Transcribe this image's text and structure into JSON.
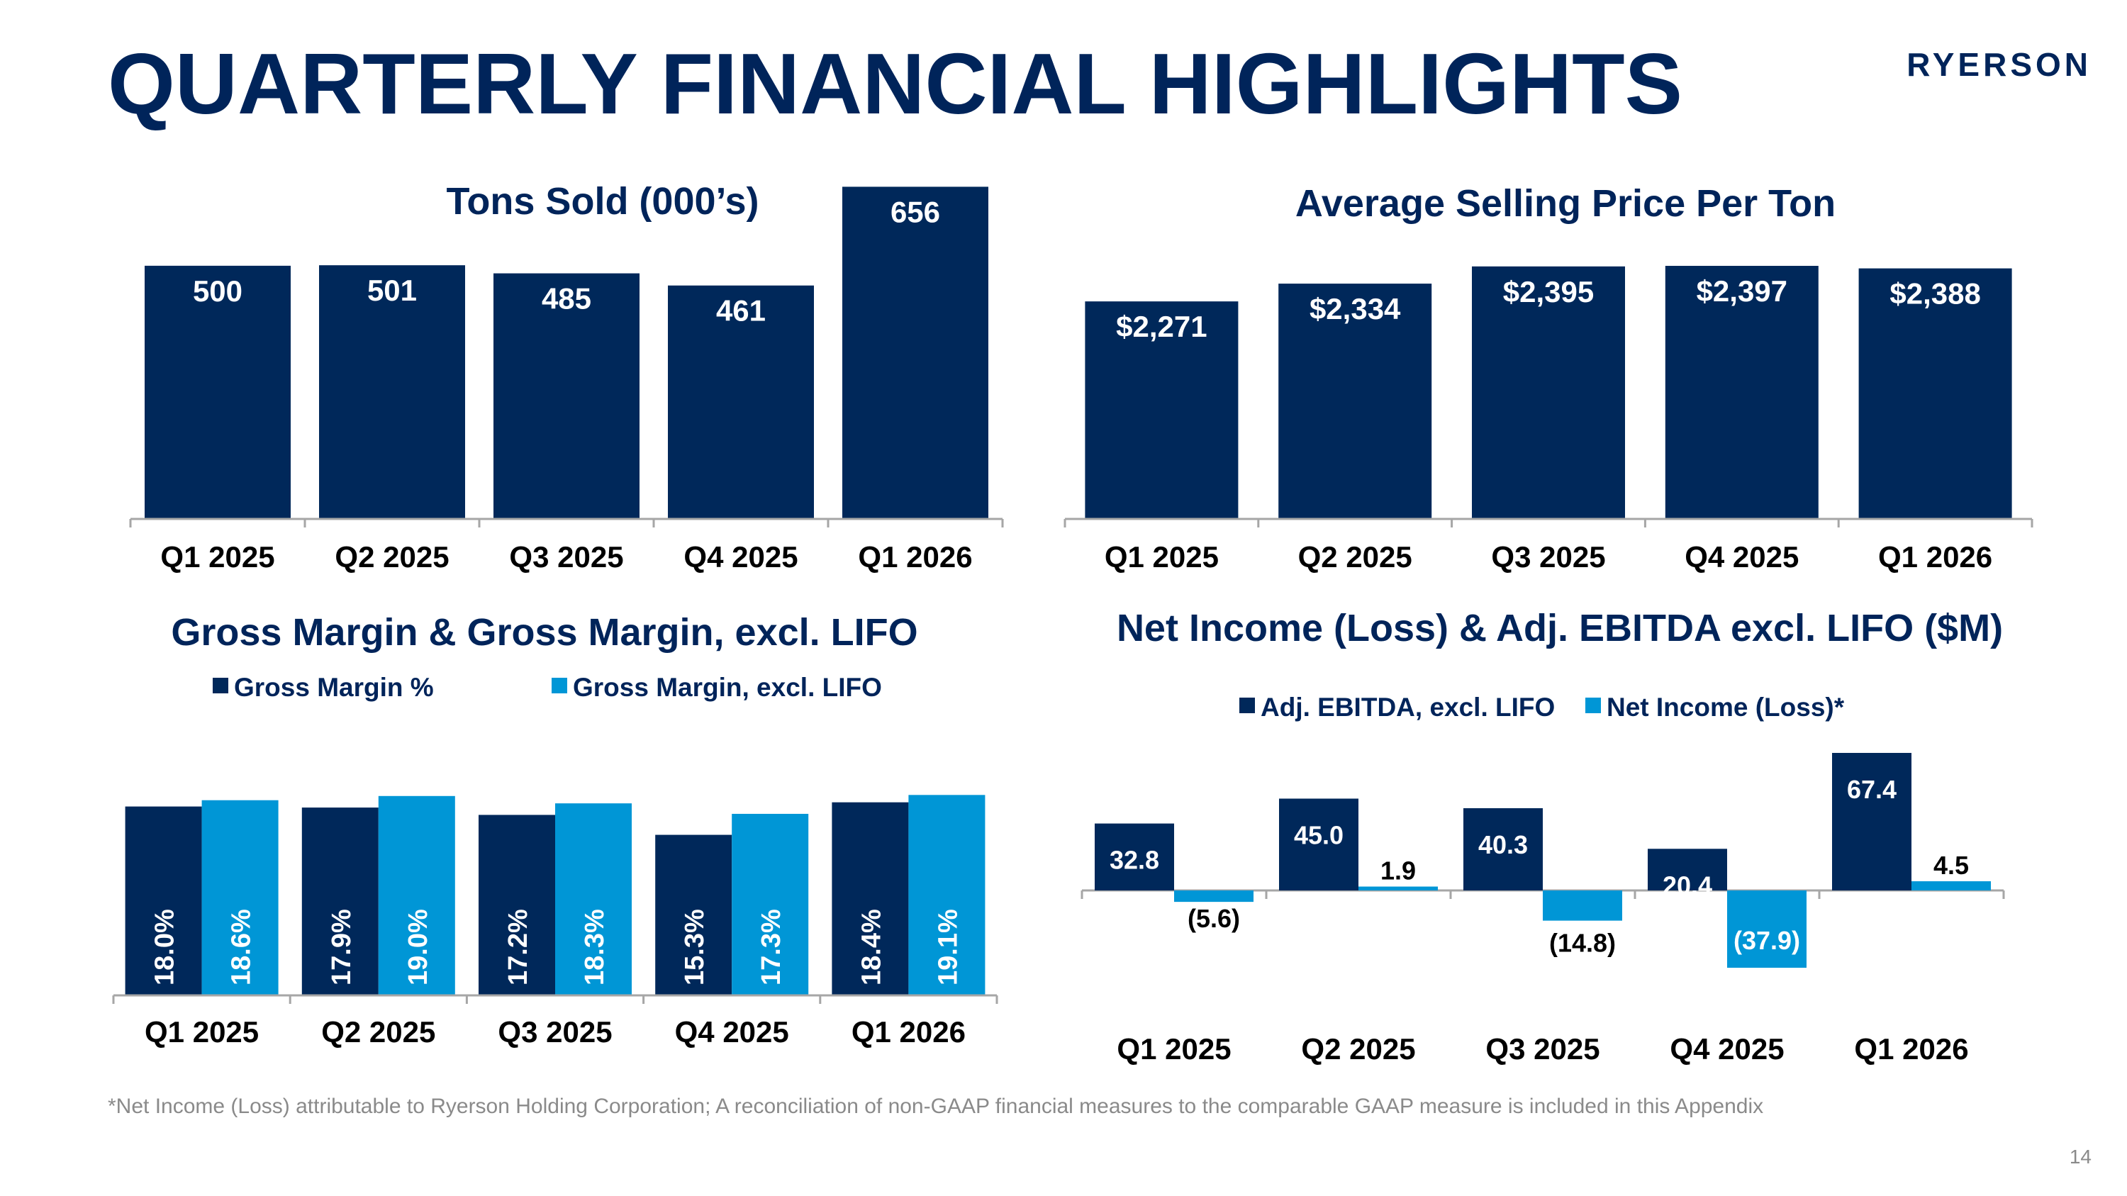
{
  "page": {
    "title": "QUARTERLY FINANCIAL HIGHLIGHTS",
    "logo": "RYERSON",
    "footnote": "*Net Income (Loss) attributable to Ryerson Holding Corporation; A reconciliation of non-GAAP financial measures to the comparable GAAP measure is included in this Appendix",
    "page_number": "14"
  },
  "colors": {
    "navy": "#00285a",
    "blue": "#0096d6",
    "axis": "#a6a6a6",
    "text_dark": "#000000",
    "title": "#00245a"
  },
  "chart_data": [
    {
      "id": "tons-sold",
      "type": "bar",
      "title": "Tons Sold (000’s)",
      "categories": [
        "Q1 2025",
        "Q2 2025",
        "Q3 2025",
        "Q4 2025",
        "Q1 2026"
      ],
      "series": [
        {
          "values": [
            500,
            501,
            485,
            461,
            656
          ]
        }
      ],
      "labels": [
        "500",
        "501",
        "485",
        "461",
        "656"
      ],
      "ylim": [
        0,
        700
      ],
      "grid": false
    },
    {
      "id": "avg-price",
      "type": "bar",
      "title": "Average Selling Price Per Ton",
      "categories": [
        "Q1 2025",
        "Q2 2025",
        "Q3 2025",
        "Q4 2025",
        "Q1 2026"
      ],
      "series": [
        {
          "values": [
            2271,
            2334,
            2395,
            2397,
            2388
          ]
        }
      ],
      "labels": [
        "$2,271",
        "$2,334",
        "$2,395",
        "$2,397",
        "$2,388"
      ],
      "ylim": [
        1500,
        2500
      ],
      "grid": false
    },
    {
      "id": "gross-margin",
      "type": "bar",
      "title": "Gross Margin & Gross Margin, excl. LIFO",
      "categories": [
        "Q1 2025",
        "Q2 2025",
        "Q3 2025",
        "Q4 2025",
        "Q1 2026"
      ],
      "series": [
        {
          "name": "Gross Margin %",
          "values": [
            18.0,
            17.9,
            17.2,
            15.3,
            18.4
          ],
          "labels": [
            "18.0%",
            "17.9%",
            "17.2%",
            "15.3%",
            "18.4%"
          ]
        },
        {
          "name": "Gross Margin, excl. LIFO",
          "values": [
            18.6,
            19.0,
            18.3,
            17.3,
            19.1
          ],
          "labels": [
            "18.6%",
            "19.0%",
            "18.3%",
            "17.3%",
            "19.1%"
          ]
        }
      ],
      "legend": "top",
      "ylim": [
        0,
        20
      ],
      "grid": false
    },
    {
      "id": "net-income-ebitda",
      "type": "bar",
      "title": "Net Income (Loss) & Adj. EBITDA excl. LIFO ($M)",
      "categories": [
        "Q1 2025",
        "Q2 2025",
        "Q3 2025",
        "Q4 2025",
        "Q1 2026"
      ],
      "series": [
        {
          "name": "Adj. EBITDA, excl. LIFO",
          "values": [
            32.8,
            45.0,
            40.3,
            20.4,
            67.4
          ],
          "labels": [
            "32.8",
            "45.0",
            "40.3",
            "20.4",
            "67.4"
          ]
        },
        {
          "name": "Net Income (Loss)*",
          "values": [
            -5.6,
            1.9,
            -14.8,
            -37.9,
            4.5
          ],
          "labels": [
            "(5.6)",
            "1.9",
            "(14.8)",
            "(37.9)",
            "4.5"
          ]
        }
      ],
      "legend": "top",
      "ylim": [
        -50,
        70
      ],
      "grid": false
    }
  ]
}
